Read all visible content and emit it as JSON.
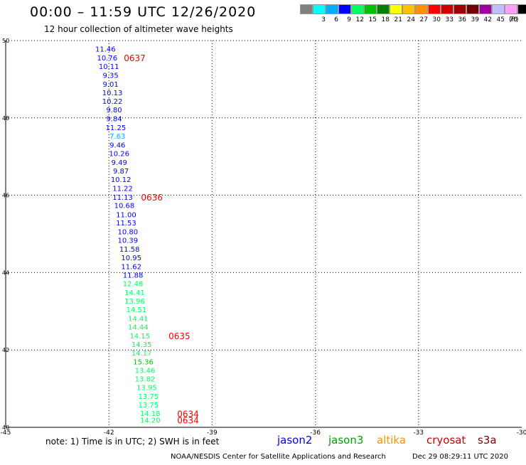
{
  "header": {
    "title": "00:00 – 11:59 UTC 12/26/2020",
    "subtitle": "12 hour collection of altimeter wave heights"
  },
  "legend": {
    "items": [
      {
        "color": "#808080",
        "label": ""
      },
      {
        "color": "#00ffff",
        "label": "3"
      },
      {
        "color": "#00b0ff",
        "label": "6"
      },
      {
        "color": "#0000ff",
        "label": "9"
      },
      {
        "color": "#00ff60",
        "label": "12"
      },
      {
        "color": "#00c000",
        "label": "15"
      },
      {
        "color": "#008000",
        "label": "18"
      },
      {
        "color": "#ffff00",
        "label": "21"
      },
      {
        "color": "#ffc000",
        "label": "24"
      },
      {
        "color": "#ff9000",
        "label": "27"
      },
      {
        "color": "#ff0000",
        "label": "30"
      },
      {
        "color": "#d00000",
        "label": "33"
      },
      {
        "color": "#a00000",
        "label": "36"
      },
      {
        "color": "#700000",
        "label": "39"
      },
      {
        "color": "#a000a0",
        "label": "42"
      },
      {
        "color": "#c0c0ff",
        "label": "45"
      },
      {
        "color": "#ffa0ff",
        "label": "70"
      },
      {
        "color": "#000000",
        "label": ""
      }
    ],
    "unit": "(ft)"
  },
  "note": "note: 1) Time is in UTC; 2) SWH is in feet",
  "satellites": [
    {
      "name": "jason2",
      "color": "#0000ff"
    },
    {
      "name": "jason3",
      "color": "#00a000"
    },
    {
      "name": "altika",
      "color": "#ff9000"
    },
    {
      "name": "cryosat",
      "color": "#d00000"
    },
    {
      "name": "s3a",
      "color": "#800000"
    }
  ],
  "footer": "NOAA/NESDIS Center for Satellite Applications and Research",
  "timestamp": "Dec 29 08:29:11 UTC 2020",
  "chart_data": {
    "type": "scatter",
    "xlim": [
      -45,
      -30
    ],
    "ylim": [
      40,
      50
    ],
    "x_ticks": [
      "-45",
      "-42",
      "-39",
      "-36",
      "-33",
      "-30"
    ],
    "x_tick_values": [
      -45,
      -42,
      -39,
      -36,
      -33,
      -30
    ],
    "y_ticks": [
      "50",
      "48",
      "46",
      "44",
      "42",
      "40"
    ],
    "y_tick_values": [
      50,
      48,
      46,
      44,
      42,
      40
    ],
    "grid": true,
    "series": [
      {
        "points": [
          {
            "x": -42.1,
            "y": 49.79,
            "v": "11.46",
            "c": "#0000ff"
          },
          {
            "x": -42.05,
            "y": 49.56,
            "v": "10.76",
            "c": "#0000ff"
          },
          {
            "x": -42.0,
            "y": 49.34,
            "v": "10.11",
            "c": "#0000ff"
          },
          {
            "x": -41.95,
            "y": 49.11,
            "v": "9.35",
            "c": "#0000ff"
          },
          {
            "x": -41.95,
            "y": 48.88,
            "v": "9.01",
            "c": "#0000ff"
          },
          {
            "x": -41.9,
            "y": 48.66,
            "v": "10.13",
            "c": "#0000ff"
          },
          {
            "x": -41.9,
            "y": 48.44,
            "v": "10.22",
            "c": "#0000ff"
          },
          {
            "x": -41.85,
            "y": 48.22,
            "v": "9.80",
            "c": "#0000ff"
          },
          {
            "x": -41.85,
            "y": 47.99,
            "v": "9.84",
            "c": "#0000ff"
          },
          {
            "x": -41.8,
            "y": 47.76,
            "v": "11.25",
            "c": "#0000ff"
          },
          {
            "x": -41.75,
            "y": 47.54,
            "v": "7.63",
            "c": "#00b0ff"
          },
          {
            "x": -41.75,
            "y": 47.31,
            "v": "9.46",
            "c": "#0000ff"
          },
          {
            "x": -41.7,
            "y": 47.09,
            "v": "10.26",
            "c": "#0000ff"
          },
          {
            "x": -41.7,
            "y": 46.86,
            "v": "9.49",
            "c": "#0000ff"
          },
          {
            "x": -41.65,
            "y": 46.64,
            "v": "9.87",
            "c": "#0000ff"
          },
          {
            "x": -41.65,
            "y": 46.42,
            "v": "10.12",
            "c": "#0000ff"
          },
          {
            "x": -41.6,
            "y": 46.19,
            "v": "11.22",
            "c": "#0000ff"
          },
          {
            "x": -41.6,
            "y": 45.96,
            "v": "11.13",
            "c": "#0000ff"
          },
          {
            "x": -41.55,
            "y": 45.74,
            "v": "10.68",
            "c": "#0000ff"
          },
          {
            "x": -41.5,
            "y": 45.51,
            "v": "11.00",
            "c": "#0000ff"
          },
          {
            "x": -41.5,
            "y": 45.29,
            "v": "11.53",
            "c": "#0000ff"
          },
          {
            "x": -41.45,
            "y": 45.06,
            "v": "10.80",
            "c": "#0000ff"
          },
          {
            "x": -41.45,
            "y": 44.84,
            "v": "10.39",
            "c": "#0000ff"
          },
          {
            "x": -41.4,
            "y": 44.61,
            "v": "11.58",
            "c": "#0000ff"
          },
          {
            "x": -41.35,
            "y": 44.39,
            "v": "10.95",
            "c": "#0000ff"
          },
          {
            "x": -41.35,
            "y": 44.16,
            "v": "11.62",
            "c": "#0000ff"
          },
          {
            "x": -41.3,
            "y": 43.94,
            "v": "11.88",
            "c": "#0000ff"
          },
          {
            "x": -41.3,
            "y": 43.72,
            "v": "12.48",
            "c": "#00ff60"
          },
          {
            "x": -41.25,
            "y": 43.49,
            "v": "14.41",
            "c": "#00ff60"
          },
          {
            "x": -41.25,
            "y": 43.27,
            "v": "13.96",
            "c": "#00ff60"
          },
          {
            "x": -41.2,
            "y": 43.05,
            "v": "14.51",
            "c": "#00ff60"
          },
          {
            "x": -41.15,
            "y": 42.82,
            "v": "14.41",
            "c": "#00ff60"
          },
          {
            "x": -41.15,
            "y": 42.6,
            "v": "14.44",
            "c": "#00ff60"
          },
          {
            "x": -41.1,
            "y": 42.37,
            "v": "14.15",
            "c": "#00ff60"
          },
          {
            "x": -41.05,
            "y": 42.15,
            "v": "14.35",
            "c": "#00ff60"
          },
          {
            "x": -41.05,
            "y": 41.93,
            "v": "14.17",
            "c": "#00ff60"
          },
          {
            "x": -41.0,
            "y": 41.7,
            "v": "15.36",
            "c": "#00c000"
          },
          {
            "x": -40.95,
            "y": 41.48,
            "v": "13.46",
            "c": "#00ff60"
          },
          {
            "x": -40.95,
            "y": 41.26,
            "v": "13.82",
            "c": "#00ff60"
          },
          {
            "x": -40.9,
            "y": 41.04,
            "v": "13.95",
            "c": "#00ff60"
          },
          {
            "x": -40.85,
            "y": 40.81,
            "v": "13.75",
            "c": "#00ff60"
          },
          {
            "x": -40.85,
            "y": 40.59,
            "v": "13.75",
            "c": "#00ff60"
          },
          {
            "x": -40.8,
            "y": 40.37,
            "v": "14.18",
            "c": "#00ff60"
          },
          {
            "x": -40.8,
            "y": 40.19,
            "v": "14.20",
            "c": "#00ff60"
          }
        ]
      }
    ],
    "annotations": [
      {
        "text": "0637",
        "x": -41.25,
        "y": 49.56,
        "color": "#ff0000"
      },
      {
        "text": "0636",
        "x": -40.75,
        "y": 45.96,
        "color": "#ff0000"
      },
      {
        "text": "0635",
        "x": -39.95,
        "y": 42.37,
        "color": "#ff0000"
      },
      {
        "text": "0634",
        "x": -39.7,
        "y": 40.36,
        "color": "#ff0000"
      },
      {
        "text": "0634",
        "x": -39.7,
        "y": 40.19,
        "color": "#ff0000"
      }
    ]
  }
}
